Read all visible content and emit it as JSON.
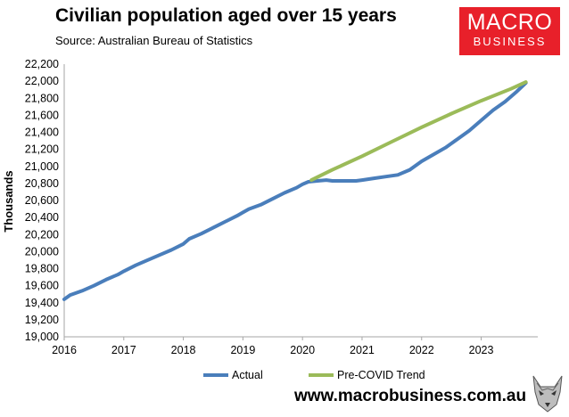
{
  "header": {
    "title": "Civilian population aged over 15 years",
    "subtitle": "Source: Australian Bureau of Statistics"
  },
  "logo": {
    "line1": "MACRO",
    "line2": "BUSINESS"
  },
  "footer": {
    "url": "www.macrobusiness.com.au"
  },
  "colors": {
    "actual": "#4a7ebb",
    "trend": "#9bbb59",
    "axis": "#a6a6a6",
    "logo_bg": "#e8202a"
  },
  "chart_data": {
    "type": "line",
    "title": "Civilian population aged over 15 years",
    "ylabel": "Thousands",
    "xlim": [
      2016,
      2023.95
    ],
    "ylim": [
      19000,
      22200
    ],
    "yticks": [
      19000,
      19200,
      19400,
      19600,
      19800,
      20000,
      20200,
      20400,
      20600,
      20800,
      21000,
      21200,
      21400,
      21600,
      21800,
      22000,
      22200
    ],
    "ytick_labels": [
      "19,000",
      "19,200",
      "19,400",
      "19,600",
      "19,800",
      "20,000",
      "20,200",
      "20,400",
      "20,600",
      "20,800",
      "21,000",
      "21,200",
      "21,400",
      "21,600",
      "21,800",
      "22,000",
      "22,200"
    ],
    "xticks": [
      "2016",
      "2017",
      "2018",
      "2019",
      "2020",
      "2021",
      "2022",
      "2023"
    ],
    "grid": false,
    "legend": "bottom",
    "series": [
      {
        "name": "Actual",
        "color": "#4a7ebb",
        "points": [
          [
            2016.0,
            19440
          ],
          [
            2016.1,
            19490
          ],
          [
            2016.3,
            19540
          ],
          [
            2016.5,
            19600
          ],
          [
            2016.7,
            19670
          ],
          [
            2016.9,
            19730
          ],
          [
            2017.0,
            19770
          ],
          [
            2017.2,
            19840
          ],
          [
            2017.4,
            19900
          ],
          [
            2017.6,
            19960
          ],
          [
            2017.8,
            20020
          ],
          [
            2018.0,
            20090
          ],
          [
            2018.1,
            20150
          ],
          [
            2018.3,
            20210
          ],
          [
            2018.5,
            20280
          ],
          [
            2018.7,
            20350
          ],
          [
            2018.9,
            20420
          ],
          [
            2019.0,
            20460
          ],
          [
            2019.1,
            20500
          ],
          [
            2019.3,
            20550
          ],
          [
            2019.5,
            20620
          ],
          [
            2019.7,
            20690
          ],
          [
            2019.9,
            20750
          ],
          [
            2020.0,
            20790
          ],
          [
            2020.1,
            20820
          ],
          [
            2020.25,
            20830
          ],
          [
            2020.4,
            20840
          ],
          [
            2020.5,
            20830
          ],
          [
            2020.7,
            20830
          ],
          [
            2020.9,
            20830
          ],
          [
            2021.0,
            20840
          ],
          [
            2021.2,
            20860
          ],
          [
            2021.4,
            20880
          ],
          [
            2021.6,
            20900
          ],
          [
            2021.8,
            20960
          ],
          [
            2022.0,
            21060
          ],
          [
            2022.2,
            21140
          ],
          [
            2022.4,
            21220
          ],
          [
            2022.6,
            21320
          ],
          [
            2022.8,
            21420
          ],
          [
            2023.0,
            21540
          ],
          [
            2023.2,
            21660
          ],
          [
            2023.4,
            21760
          ],
          [
            2023.6,
            21880
          ],
          [
            2023.75,
            21980
          ]
        ]
      },
      {
        "name": "Pre-COVID Trend",
        "color": "#9bbb59",
        "points": [
          [
            2020.15,
            20840
          ],
          [
            2020.5,
            20960
          ],
          [
            2021.0,
            21120
          ],
          [
            2021.5,
            21290
          ],
          [
            2022.0,
            21460
          ],
          [
            2022.5,
            21620
          ],
          [
            2023.0,
            21770
          ],
          [
            2023.5,
            21910
          ],
          [
            2023.75,
            21990
          ]
        ]
      }
    ]
  }
}
